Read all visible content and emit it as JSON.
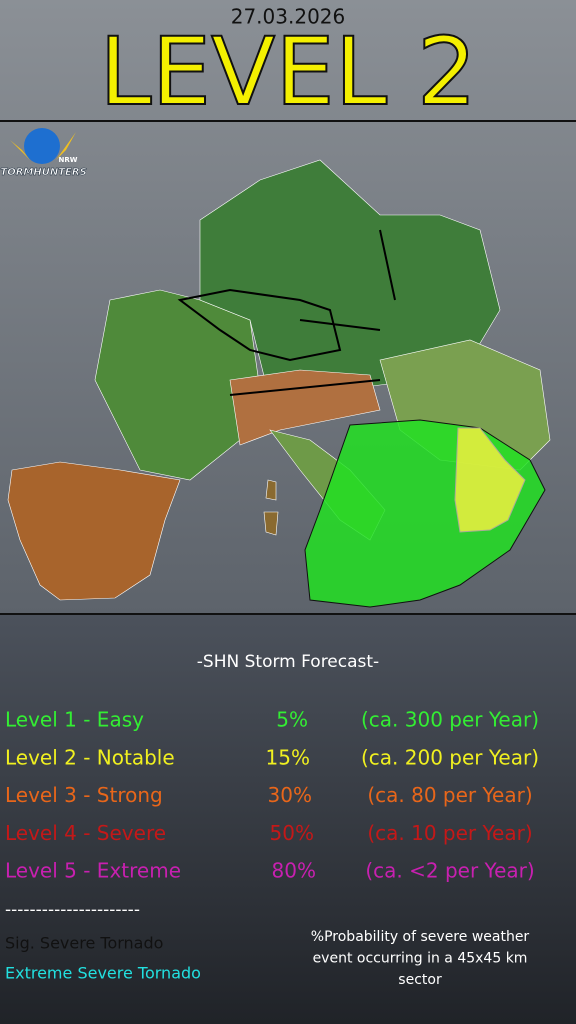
{
  "header": {
    "date": "27.03.2026",
    "level": "LEVEL 2"
  },
  "logo": {
    "name": "STORMHUNTERS",
    "region": "NRW"
  },
  "legend": {
    "title": "-SHN Storm Forecast-",
    "levels": [
      {
        "name": "Level 1 - Easy",
        "probability": "5%",
        "frequency": "(ca. 300 per Year)"
      },
      {
        "name": "Level 2 - Notable",
        "probability": "15%",
        "frequency": "(ca. 200 per Year)"
      },
      {
        "name": "Level 3 - Strong",
        "probability": "30%",
        "frequency": "(ca. 80 per Year)"
      },
      {
        "name": "Level 4 - Severe",
        "probability": "50%",
        "frequency": "(ca. 10 per Year)"
      },
      {
        "name": "Level 5 - Extreme",
        "probability": "80%",
        "frequency": "(ca.  <2 per Year)"
      }
    ],
    "divider": "----------------------",
    "tornado": [
      "Sig. Severe Tornado",
      "Extreme Severe Tornado"
    ],
    "note": [
      "%Probability of severe weather",
      "event occurring in a 45x45 km",
      "sector"
    ]
  }
}
